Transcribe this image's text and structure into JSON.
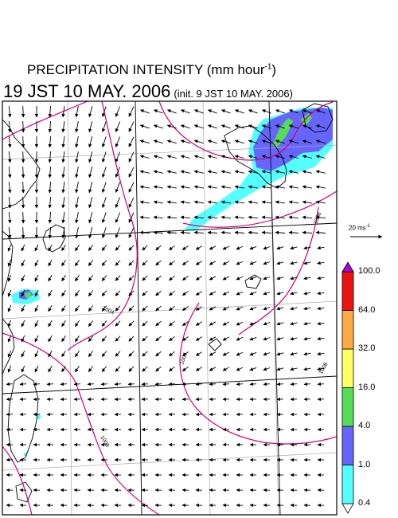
{
  "title": {
    "line1_prefix": "PRECIPITATION INTENSITY (mm hour",
    "line1_exponent": "-1",
    "line1_suffix": ")",
    "main": "19 JST 10 MAY. 2006",
    "init": "(init. 9 JST 10 MAY. 2006)"
  },
  "wind_reference": {
    "value": "20",
    "unit": "ms",
    "exponent": "-1"
  },
  "colorbar": {
    "levels": [
      "0.4",
      "1.0",
      "4.0",
      "16.0",
      "32.0",
      "64.0",
      "100.0"
    ],
    "colors": [
      "#55ffff",
      "#6666ff",
      "#55dd55",
      "#ffff66",
      "#ffaa44",
      "#ee1111"
    ],
    "top_arrow_color": "#aa00dd"
  },
  "isobar_labels": [
    "1008",
    "1004",
    "1004",
    "1008",
    "1008"
  ],
  "colors": {
    "isobar": "#cc0077",
    "coast": "#000000",
    "grid": "#999999",
    "arrow": "#000000"
  }
}
